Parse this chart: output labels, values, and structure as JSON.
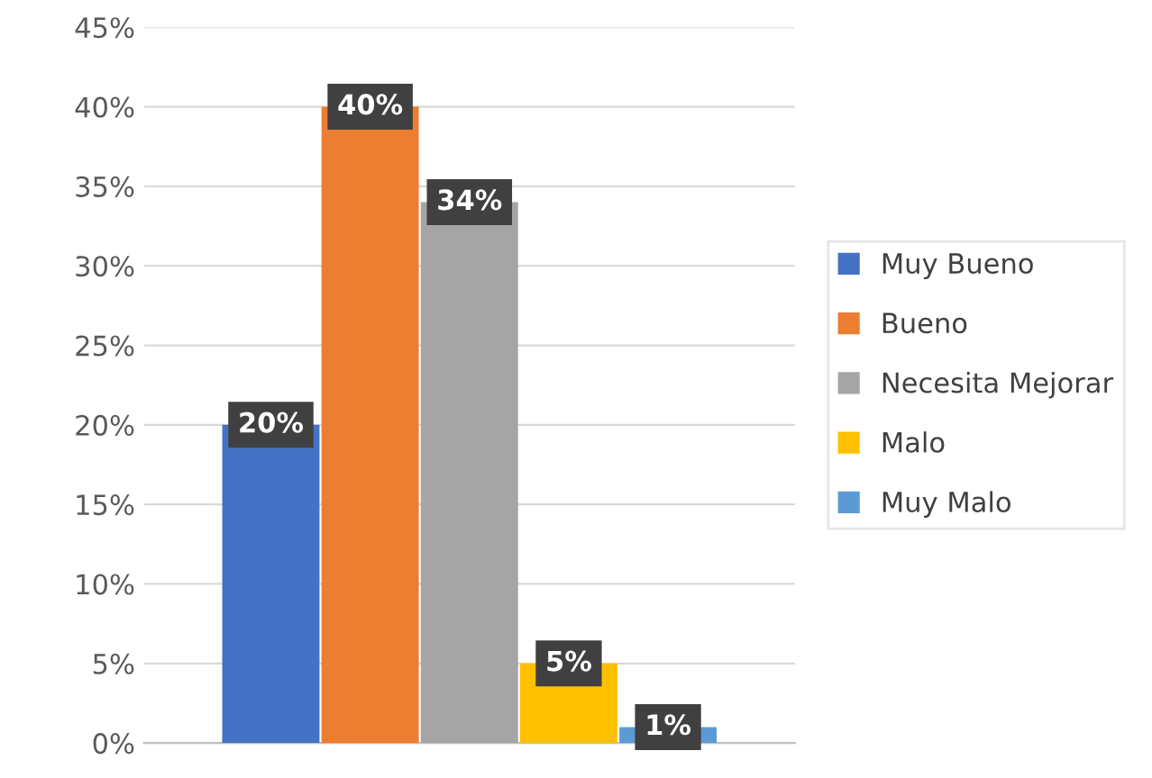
{
  "chart_data": {
    "type": "bar",
    "categories": [
      null
    ],
    "series": [
      {
        "name": "Muy Bueno",
        "color": "#4472c4",
        "values": [
          20
        ],
        "value_labels": [
          "20%"
        ]
      },
      {
        "name": "Bueno",
        "color": "#ed7d31",
        "values": [
          40
        ],
        "value_labels": [
          "40%"
        ]
      },
      {
        "name": "Necesita Mejorar",
        "color": "#a5a5a5",
        "values": [
          34
        ],
        "value_labels": [
          "34%"
        ]
      },
      {
        "name": "Malo",
        "color": "#ffc000",
        "values": [
          5
        ],
        "value_labels": [
          "5%"
        ]
      },
      {
        "name": "Muy Malo",
        "color": "#5b9bd5",
        "values": [
          1
        ],
        "value_labels": [
          "1%"
        ]
      }
    ],
    "ylim": [
      0,
      45
    ],
    "yticks": [
      {
        "value": 0,
        "label": "0%"
      },
      {
        "value": 5,
        "label": "5%"
      },
      {
        "value": 10,
        "label": "10%"
      },
      {
        "value": 15,
        "label": "15%"
      },
      {
        "value": 20,
        "label": "20%"
      },
      {
        "value": 25,
        "label": "25%"
      },
      {
        "value": 30,
        "label": "30%"
      },
      {
        "value": 35,
        "label": "35%"
      },
      {
        "value": 40,
        "label": "40%"
      },
      {
        "value": 45,
        "label": "45%"
      }
    ],
    "grid": "y",
    "legend": "right"
  }
}
